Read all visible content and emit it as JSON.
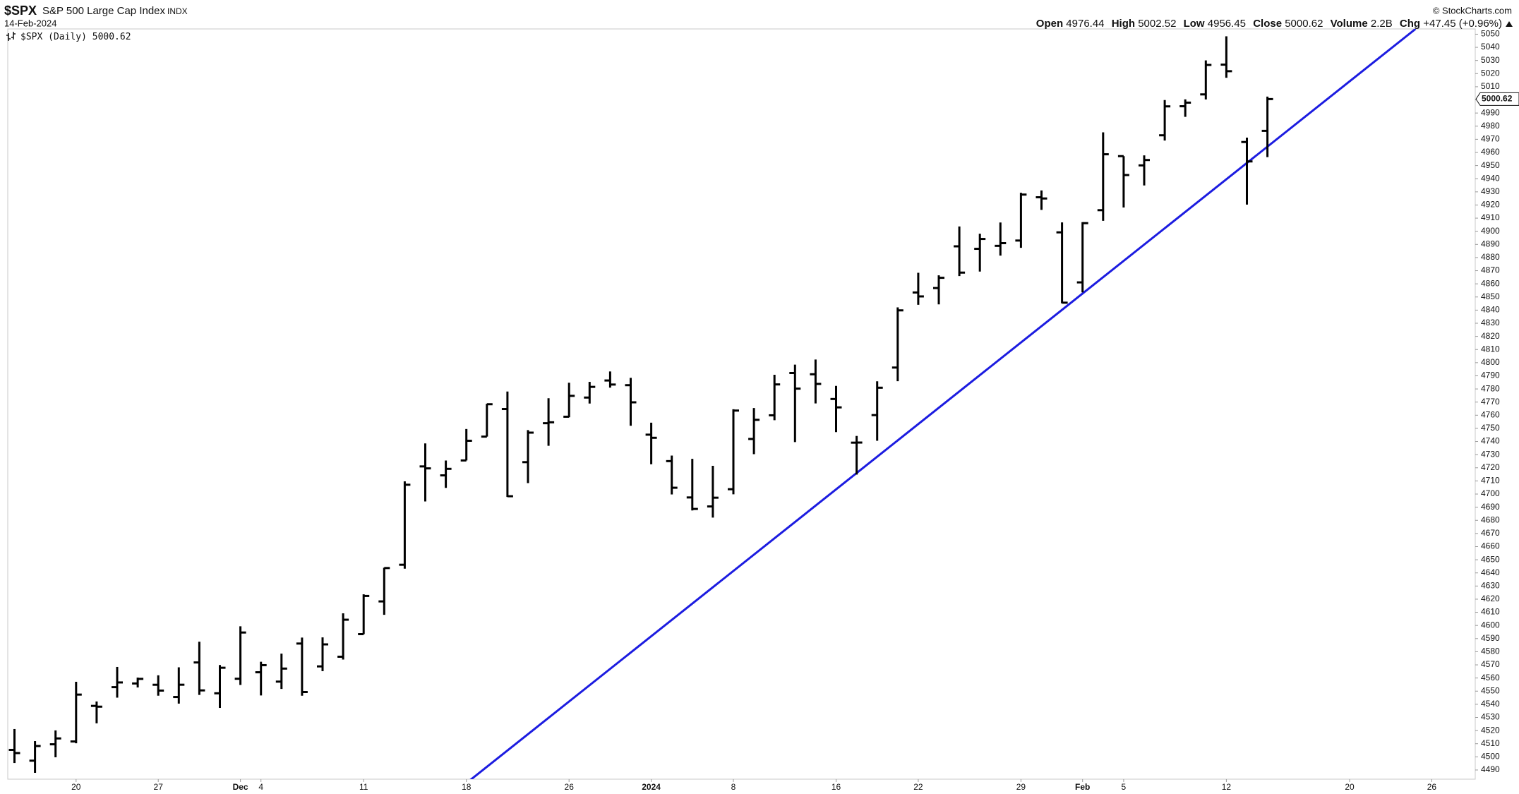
{
  "chart_data": {
    "type": "ohlc",
    "title": "$SPX",
    "subtitle": "S&P 500 Large Cap Index",
    "exchange": "INDX",
    "date": "14-Feb-2024",
    "credit": "© StockCharts.com",
    "summary_labels": {
      "open": "Open",
      "high": "High",
      "low": "Low",
      "close": "Close",
      "volume": "Volume",
      "change": "Chg"
    },
    "volume": "2.2B",
    "change": "+47.45 (+0.96%)",
    "x": [
      "2023-11-15",
      "2023-11-16",
      "2023-11-17",
      "2023-11-20",
      "2023-11-21",
      "2023-11-22",
      "2023-11-24",
      "2023-11-27",
      "2023-11-28",
      "2023-11-29",
      "2023-11-30",
      "2023-12-01",
      "2023-12-04",
      "2023-12-05",
      "2023-12-06",
      "2023-12-07",
      "2023-12-08",
      "2023-12-11",
      "2023-12-12",
      "2023-12-13",
      "2023-12-14",
      "2023-12-15",
      "2023-12-18",
      "2023-12-19",
      "2023-12-20",
      "2023-12-21",
      "2023-12-22",
      "2023-12-26",
      "2023-12-27",
      "2023-12-28",
      "2023-12-29",
      "2024-01-02",
      "2024-01-03",
      "2024-01-04",
      "2024-01-05",
      "2024-01-08",
      "2024-01-09",
      "2024-01-10",
      "2024-01-11",
      "2024-01-12",
      "2024-01-16",
      "2024-01-17",
      "2024-01-18",
      "2024-01-19",
      "2024-01-22",
      "2024-01-23",
      "2024-01-24",
      "2024-01-25",
      "2024-01-26",
      "2024-01-29",
      "2024-01-30",
      "2024-01-31",
      "2024-02-01",
      "2024-02-02",
      "2024-02-05",
      "2024-02-06",
      "2024-02-07",
      "2024-02-08",
      "2024-02-09",
      "2024-02-12",
      "2024-02-13",
      "2024-02-14"
    ],
    "series": [
      {
        "name": "$SPX (Daily)",
        "color": "#000000",
        "open": [
          4505.3,
          4497.08,
          4509.55,
          4511.7,
          4538.77,
          4553.04,
          4555.84,
          4554.86,
          4545.55,
          4571.84,
          4548.37,
          4559.43,
          4564.37,
          4557.25,
          4586.23,
          4568.84,
          4576.2,
          4593.39,
          4618.3,
          4646.2,
          4721.04,
          4714.23,
          4725.58,
          4743.72,
          4764.73,
          4724.29,
          4753.92,
          4758.86,
          4773.45,
          4786.44,
          4782.88,
          4745.2,
          4725.07,
          4697.42,
          4690.57,
          4703.7,
          4741.93,
          4759.94,
          4792.13,
          4791.18,
          4772.35,
          4739.13,
          4760.1,
          4796.28,
          4853.42,
          4856.8,
          4888.56,
          4886.66,
          4888.91,
          4892.95,
          4925.89,
          4899.19,
          4861.11,
          4916.06,
          4957.19,
          4950.16,
          4973.05,
          4995.16,
          5004.17,
          5026.83,
          4967.94,
          4976.44
        ],
        "high": [
          4521.17,
          4511.99,
          4520.12,
          4557.11,
          4542.14,
          4568.43,
          4560.31,
          4562.06,
          4568.14,
          4587.64,
          4569.89,
          4599.39,
          4572.37,
          4578.56,
          4590.74,
          4590.92,
          4609.23,
          4623.71,
          4643.93,
          4709.69,
          4738.57,
          4725.53,
          4749.52,
          4768.69,
          4778.01,
          4748.71,
          4772.94,
          4784.72,
          4785.39,
          4793.3,
          4788.43,
          4754.33,
          4729.29,
          4726.78,
          4721.49,
          4764.54,
          4765.47,
          4790.8,
          4798.5,
          4802.4,
          4782.34,
          4744.23,
          4785.79,
          4842.07,
          4868.41,
          4866.48,
          4903.68,
          4898.15,
          4906.69,
          4929.31,
          4931.09,
          4906.75,
          4906.97,
          4975.29,
          4957.19,
          4957.77,
          4999.89,
          5000.4,
          5030.06,
          5048.39,
          4971.3,
          5002.52
        ],
        "low": [
          4495.31,
          4487.83,
          4499.66,
          4510.36,
          4525.51,
          4545.05,
          4552.8,
          4546.53,
          4540.51,
          4547.15,
          4537.24,
          4554.71,
          4546.72,
          4551.68,
          4546.5,
          4565.22,
          4574.06,
          4593.39,
          4608.09,
          4643.23,
          4694.34,
          4704.69,
          4725.58,
          4743.72,
          4697.82,
          4708.35,
          4736.77,
          4758.45,
          4768.9,
          4780.98,
          4751.99,
          4722.67,
          4699.71,
          4687.53,
          4682.11,
          4699.82,
          4730.35,
          4756.2,
          4739.58,
          4768.98,
          4747.12,
          4714.82,
          4740.57,
          4785.87,
          4844.05,
          4844.37,
          4865.94,
          4869.34,
          4881.47,
          4887.4,
          4916.27,
          4845.15,
          4853.52,
          4907.99,
          4918.09,
          4934.88,
          4969.05,
          4987.09,
          5000.34,
          5016.83,
          4920.31,
          4956.45
        ],
        "close": [
          4502.88,
          4508.24,
          4514.02,
          4547.38,
          4538.19,
          4556.62,
          4559.34,
          4550.43,
          4554.89,
          4550.58,
          4567.8,
          4594.63,
          4569.78,
          4567.18,
          4549.34,
          4585.59,
          4604.37,
          4622.44,
          4643.7,
          4707.09,
          4719.55,
          4719.19,
          4740.56,
          4768.37,
          4698.35,
          4746.75,
          4754.63,
          4774.75,
          4781.58,
          4783.35,
          4769.83,
          4742.83,
          4704.81,
          4688.68,
          4697.24,
          4763.54,
          4756.5,
          4783.45,
          4780.24,
          4783.83,
          4765.98,
          4739.21,
          4780.94,
          4839.81,
          4850.43,
          4864.6,
          4868.55,
          4894.16,
          4890.97,
          4927.93,
          4924.97,
          4845.65,
          4906.19,
          4958.61,
          4942.81,
          4954.23,
          4995.06,
          4997.91,
          5026.61,
          5021.84,
          4953.17,
          5000.62
        ]
      }
    ],
    "trendline": {
      "color": "#1c1ce0",
      "x": [
        "2024-01-17",
        "2024-02-13"
      ],
      "values": [
        4716,
        4952
      ]
    },
    "ylim": [
      4483,
      5054
    ],
    "yticks": [
      4490,
      4500,
      4510,
      4520,
      4530,
      4540,
      4550,
      4560,
      4570,
      4580,
      4590,
      4600,
      4610,
      4620,
      4630,
      4640,
      4650,
      4660,
      4670,
      4680,
      4690,
      4700,
      4710,
      4720,
      4730,
      4740,
      4750,
      4760,
      4770,
      4780,
      4790,
      4800,
      4810,
      4820,
      4830,
      4840,
      4850,
      4860,
      4870,
      4880,
      4890,
      4900,
      4910,
      4920,
      4930,
      4940,
      4950,
      4960,
      4970,
      4980,
      4990,
      5000,
      5010,
      5020,
      5030,
      5040,
      5050
    ],
    "xticks": [
      {
        "value": "2023-11-20",
        "label": "20"
      },
      {
        "value": "2023-11-27",
        "label": "27"
      },
      {
        "value": "2023-12-01",
        "label": "Dec"
      },
      {
        "value": "2023-12-04",
        "label": "4"
      },
      {
        "value": "2023-12-11",
        "label": "11"
      },
      {
        "value": "2023-12-18",
        "label": "18"
      },
      {
        "value": "2023-12-26",
        "label": "26"
      },
      {
        "value": "2024-01-02",
        "label": "2024"
      },
      {
        "value": "2024-01-08",
        "label": "8"
      },
      {
        "value": "2024-01-16",
        "label": "16"
      },
      {
        "value": "2024-01-22",
        "label": "22"
      },
      {
        "value": "2024-01-29",
        "label": "29"
      },
      {
        "value": "2024-02-01",
        "label": "Feb"
      },
      {
        "value": "2024-02-05",
        "label": "5"
      },
      {
        "value": "2024-02-12",
        "label": "12"
      },
      {
        "value": "2024-02-20",
        "label": "20"
      },
      {
        "value": "2024-02-26",
        "label": "26"
      }
    ],
    "grid": false
  }
}
